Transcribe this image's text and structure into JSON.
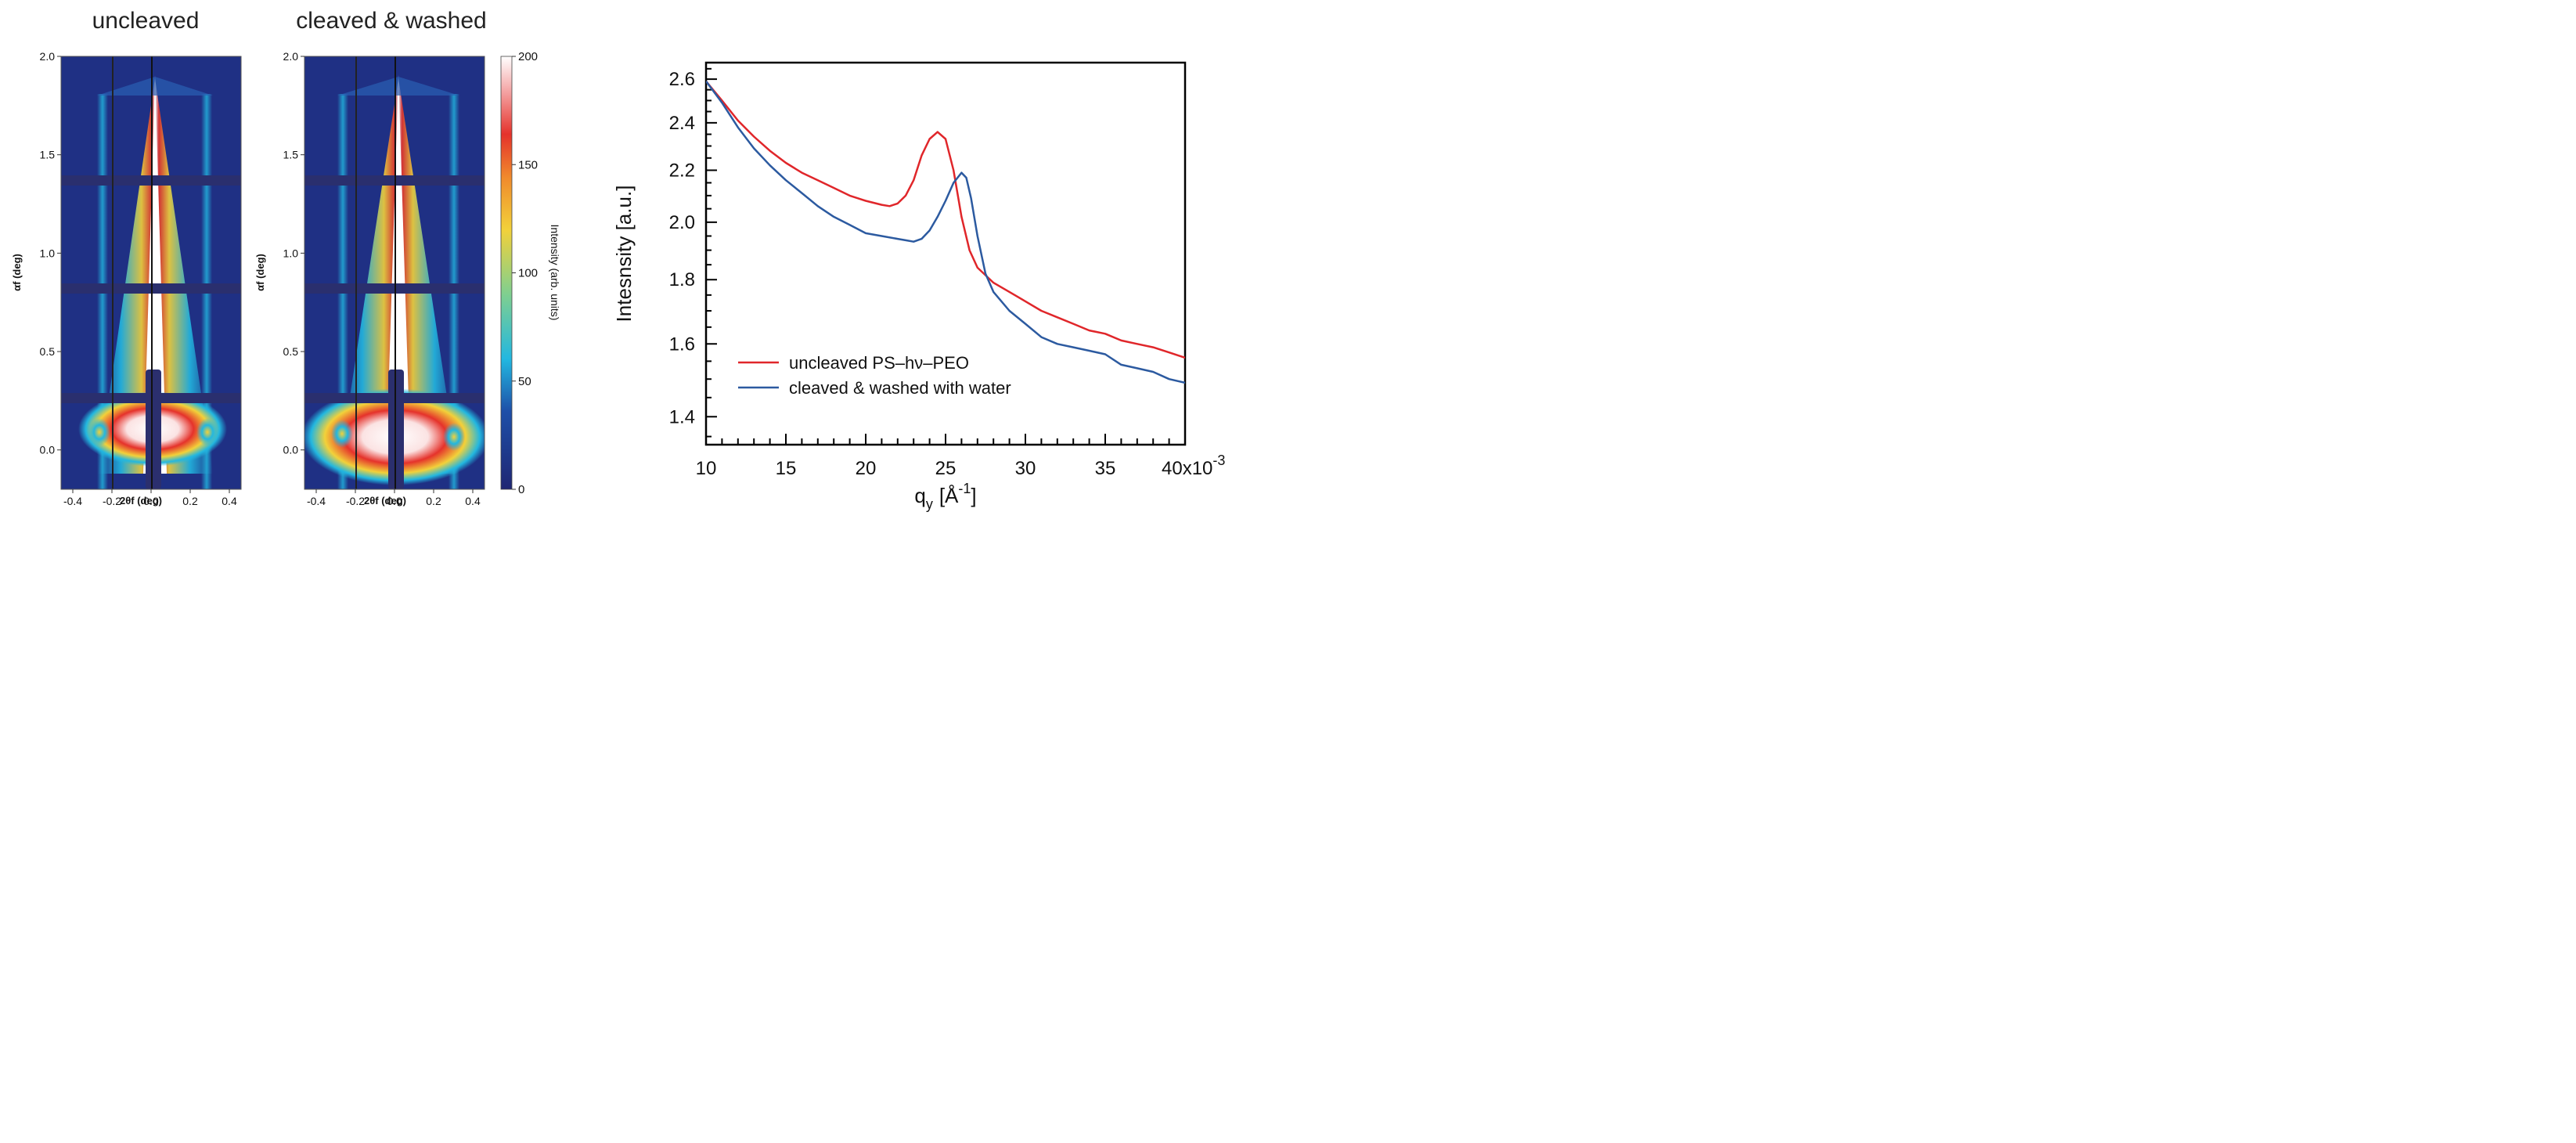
{
  "colors": {
    "map_low": "#1f2673",
    "map_mid": "#22b7e0",
    "map_yellow": "#f2d13a",
    "map_red": "#e5322b",
    "map_high": "#ffffff",
    "series_uncleaved": "#e0262a",
    "series_cleaved": "#2c5aa0",
    "axis": "#000000"
  },
  "panels": {
    "uncleaved": {
      "title": "uncleaved",
      "xlabel": "2θf (deg)",
      "ylabel": "αf (deg)"
    },
    "cleaved": {
      "title": "cleaved & washed",
      "xlabel": "2θf (deg)",
      "ylabel": "αf (deg)"
    },
    "colorbar": {
      "label": "Intensity (arb. units)"
    }
  },
  "chart_data": [
    {
      "type": "heatmap",
      "title": "uncleaved",
      "xlabel": "2θf (deg)",
      "ylabel": "αf (deg)",
      "xlim": [
        -0.46,
        0.46
      ],
      "ylim": [
        -0.2,
        2.0
      ],
      "xticks": [
        -0.4,
        -0.2,
        0.0,
        0.2,
        0.4
      ],
      "xtick_labels": [
        "-0.4",
        "-0.2",
        "0.0",
        "0.2",
        "0.4"
      ],
      "yticks": [
        0.0,
        0.5,
        1.0,
        1.5,
        2.0
      ],
      "ytick_labels": [
        "0.0",
        "0.5",
        "1.0",
        "1.5",
        "2.0"
      ],
      "side_rods_x": [
        -0.28,
        0.28
      ],
      "detector_gaps_y": [
        0.25,
        0.81,
        1.36
      ],
      "yoneda_y": 0.1
    },
    {
      "type": "heatmap",
      "title": "cleaved & washed",
      "xlabel": "2θf (deg)",
      "ylabel": "αf (deg)",
      "xlim": [
        -0.46,
        0.46
      ],
      "ylim": [
        -0.2,
        2.0
      ],
      "xticks": [
        -0.4,
        -0.2,
        0.0,
        0.2,
        0.4
      ],
      "xtick_labels": [
        "-0.4",
        "-0.2",
        "0.0",
        "0.2",
        "0.4"
      ],
      "yticks": [
        0.0,
        0.5,
        1.0,
        1.5,
        2.0
      ],
      "ytick_labels": [
        "0.0",
        "0.5",
        "1.0",
        "1.5",
        "2.0"
      ],
      "side_rods_x": [
        -0.29,
        0.29
      ],
      "detector_gaps_y": [
        0.25,
        0.81,
        1.36
      ],
      "yoneda_y": 0.1,
      "colorbar": {
        "label": "Intensity (arb. units)",
        "range": [
          0,
          200
        ],
        "ticks": [
          0,
          50,
          100,
          150,
          200
        ],
        "tick_labels": [
          "0",
          "50",
          "100",
          "150",
          "200"
        ]
      }
    },
    {
      "type": "line",
      "xlabel_main": "q",
      "xlabel_sub": "y",
      "xlabel_unit": "[Å",
      "xlabel_sup": "-1",
      "xlabel_close": "]",
      "ylabel": "Intesnsity [a.u.]",
      "xlim": [
        10,
        40
      ],
      "ylim": [
        1.33,
        2.68
      ],
      "yscale": "log",
      "xticks": [
        10,
        15,
        20,
        25,
        30,
        35,
        40
      ],
      "xtick_labels": [
        "10",
        "15",
        "20",
        "25",
        "30",
        "35",
        "40x10"
      ],
      "x_exponent": "-3",
      "yticks": [
        1.4,
        1.6,
        1.8,
        2.0,
        2.2,
        2.4,
        2.6
      ],
      "ytick_labels": [
        "1.4",
        "1.6",
        "1.8",
        "2.0",
        "2.2",
        "2.4",
        "2.6"
      ],
      "legend_position": "lower-left",
      "series": [
        {
          "name": "uncleaved PS–hν–PEO",
          "x": [
            10,
            11,
            12,
            13,
            14,
            15,
            16,
            17,
            18,
            19,
            20,
            21,
            21.5,
            22,
            22.5,
            23,
            23.5,
            24,
            24.5,
            25,
            25.5,
            26,
            26.5,
            27,
            28,
            29,
            30,
            31,
            32,
            33,
            34,
            35,
            36,
            37,
            38,
            39,
            40
          ],
          "values": [
            2.59,
            2.5,
            2.41,
            2.34,
            2.28,
            2.23,
            2.19,
            2.16,
            2.13,
            2.1,
            2.08,
            2.065,
            2.06,
            2.07,
            2.1,
            2.16,
            2.26,
            2.33,
            2.36,
            2.33,
            2.2,
            2.02,
            1.9,
            1.84,
            1.79,
            1.76,
            1.73,
            1.7,
            1.68,
            1.66,
            1.64,
            1.63,
            1.61,
            1.6,
            1.59,
            1.575,
            1.56
          ]
        },
        {
          "name": "cleaved & washed with water",
          "x": [
            10,
            11,
            12,
            13,
            14,
            15,
            16,
            17,
            18,
            19,
            20,
            21,
            22,
            22.5,
            23,
            23.5,
            24,
            24.5,
            25,
            25.5,
            26,
            26.3,
            26.6,
            27,
            27.5,
            28,
            29,
            30,
            31,
            32,
            33,
            34,
            35,
            36,
            37,
            38,
            39,
            40
          ],
          "values": [
            2.59,
            2.49,
            2.38,
            2.29,
            2.22,
            2.16,
            2.11,
            2.06,
            2.02,
            1.99,
            1.96,
            1.95,
            1.94,
            1.935,
            1.93,
            1.94,
            1.97,
            2.02,
            2.08,
            2.15,
            2.19,
            2.17,
            2.09,
            1.95,
            1.82,
            1.76,
            1.7,
            1.66,
            1.62,
            1.6,
            1.59,
            1.58,
            1.57,
            1.54,
            1.53,
            1.52,
            1.5,
            1.49
          ]
        }
      ]
    }
  ]
}
